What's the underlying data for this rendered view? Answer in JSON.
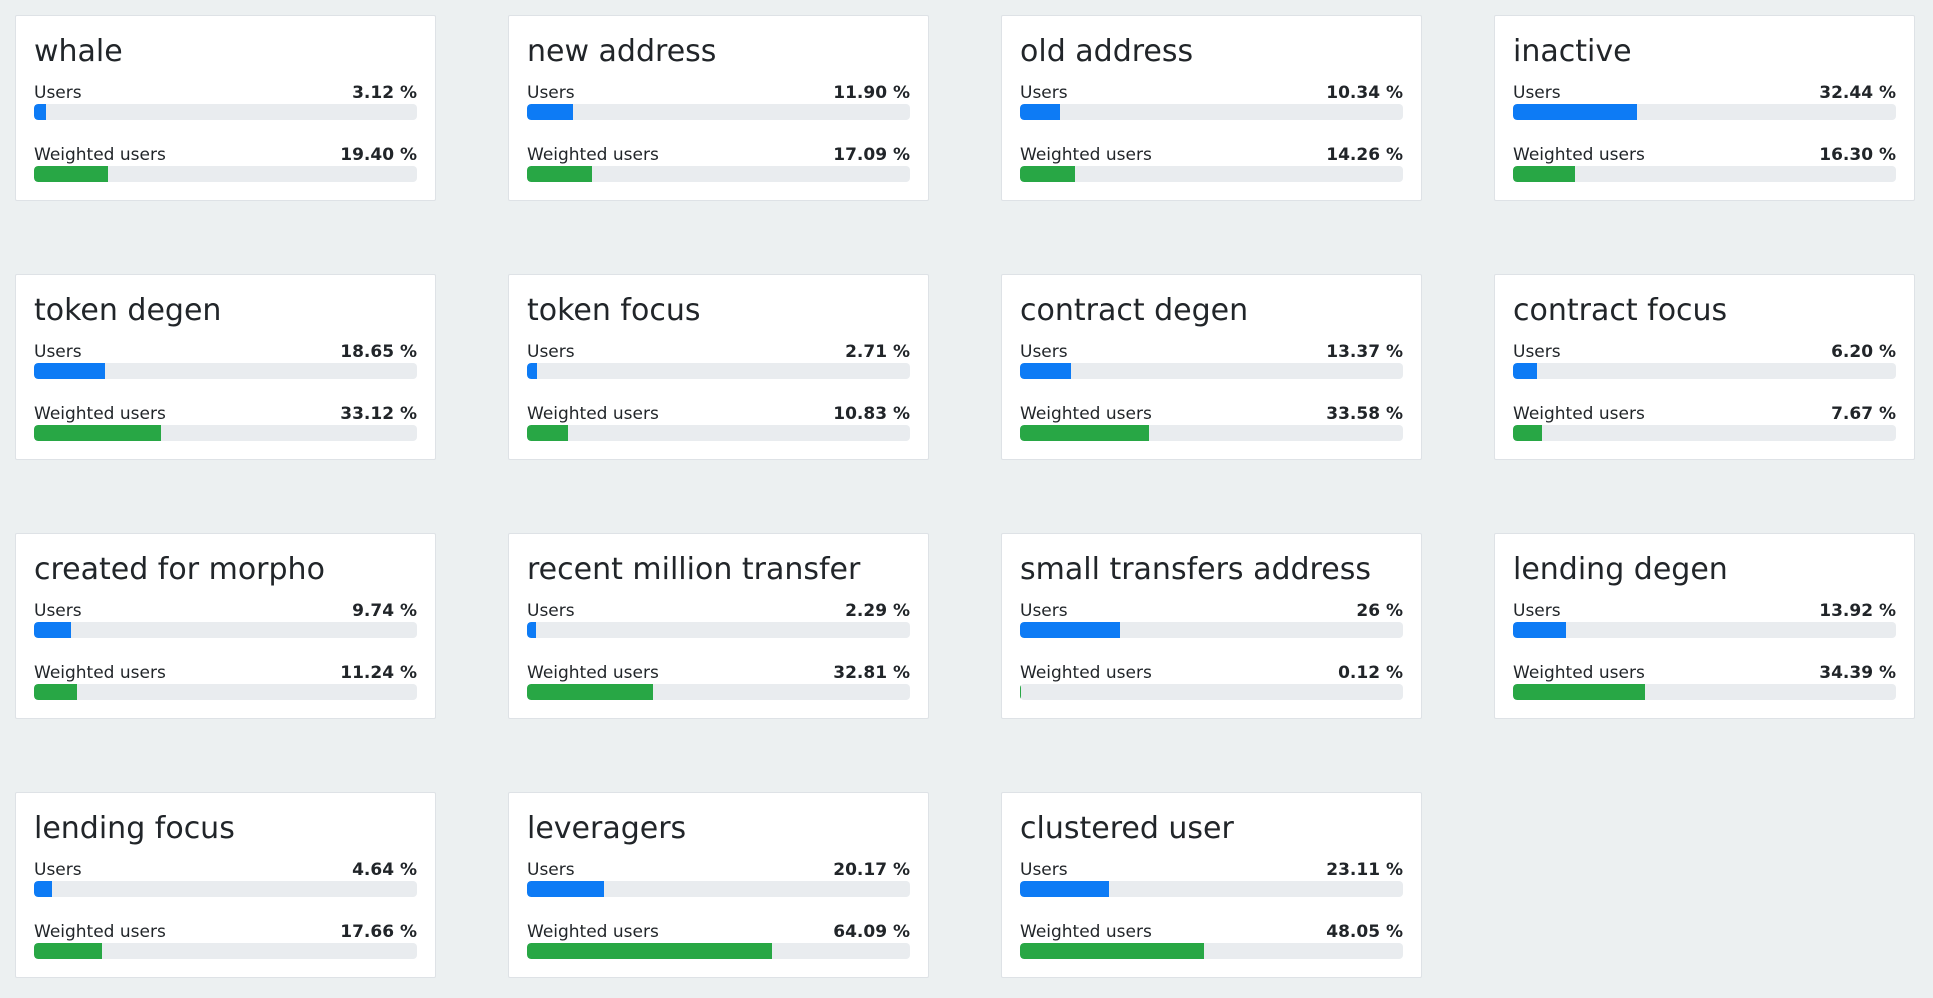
{
  "colors": {
    "background": "#ecf0f1",
    "card": "#ffffff",
    "users_bar": "#0d7bf5",
    "weighted_bar": "#28a745",
    "track": "#e9ecef"
  },
  "labels": {
    "users": "Users",
    "weighted": "Weighted users"
  },
  "cards": [
    {
      "title": "whale",
      "users": {
        "text": "3.12 %",
        "pct": 3.12
      },
      "weighted": {
        "text": "19.40 %",
        "pct": 19.4
      }
    },
    {
      "title": "new address",
      "users": {
        "text": "11.90 %",
        "pct": 11.9
      },
      "weighted": {
        "text": "17.09 %",
        "pct": 17.09
      }
    },
    {
      "title": "old address",
      "users": {
        "text": "10.34 %",
        "pct": 10.34
      },
      "weighted": {
        "text": "14.26 %",
        "pct": 14.26
      }
    },
    {
      "title": "inactive",
      "users": {
        "text": "32.44 %",
        "pct": 32.44
      },
      "weighted": {
        "text": "16.30 %",
        "pct": 16.3
      }
    },
    {
      "title": "token degen",
      "users": {
        "text": "18.65 %",
        "pct": 18.65
      },
      "weighted": {
        "text": "33.12 %",
        "pct": 33.12
      }
    },
    {
      "title": "token focus",
      "users": {
        "text": "2.71 %",
        "pct": 2.71
      },
      "weighted": {
        "text": "10.83 %",
        "pct": 10.83
      }
    },
    {
      "title": "contract degen",
      "users": {
        "text": "13.37 %",
        "pct": 13.37
      },
      "weighted": {
        "text": "33.58 %",
        "pct": 33.58
      }
    },
    {
      "title": "contract focus",
      "users": {
        "text": "6.20 %",
        "pct": 6.2
      },
      "weighted": {
        "text": "7.67 %",
        "pct": 7.67
      }
    },
    {
      "title": "created for morpho",
      "users": {
        "text": "9.74 %",
        "pct": 9.74
      },
      "weighted": {
        "text": "11.24 %",
        "pct": 11.24
      }
    },
    {
      "title": "recent million transfer",
      "users": {
        "text": "2.29 %",
        "pct": 2.29
      },
      "weighted": {
        "text": "32.81 %",
        "pct": 32.81
      }
    },
    {
      "title": "small transfers address",
      "users": {
        "text": "26 %",
        "pct": 26
      },
      "weighted": {
        "text": "0.12 %",
        "pct": 0.12
      }
    },
    {
      "title": "lending degen",
      "users": {
        "text": "13.92 %",
        "pct": 13.92
      },
      "weighted": {
        "text": "34.39 %",
        "pct": 34.39
      }
    },
    {
      "title": "lending focus",
      "users": {
        "text": "4.64 %",
        "pct": 4.64
      },
      "weighted": {
        "text": "17.66 %",
        "pct": 17.66
      }
    },
    {
      "title": "leveragers",
      "users": {
        "text": "20.17 %",
        "pct": 20.17
      },
      "weighted": {
        "text": "64.09 %",
        "pct": 64.09
      }
    },
    {
      "title": "clustered user",
      "users": {
        "text": "23.11 %",
        "pct": 23.11
      },
      "weighted": {
        "text": "48.05 %",
        "pct": 48.05
      }
    }
  ]
}
